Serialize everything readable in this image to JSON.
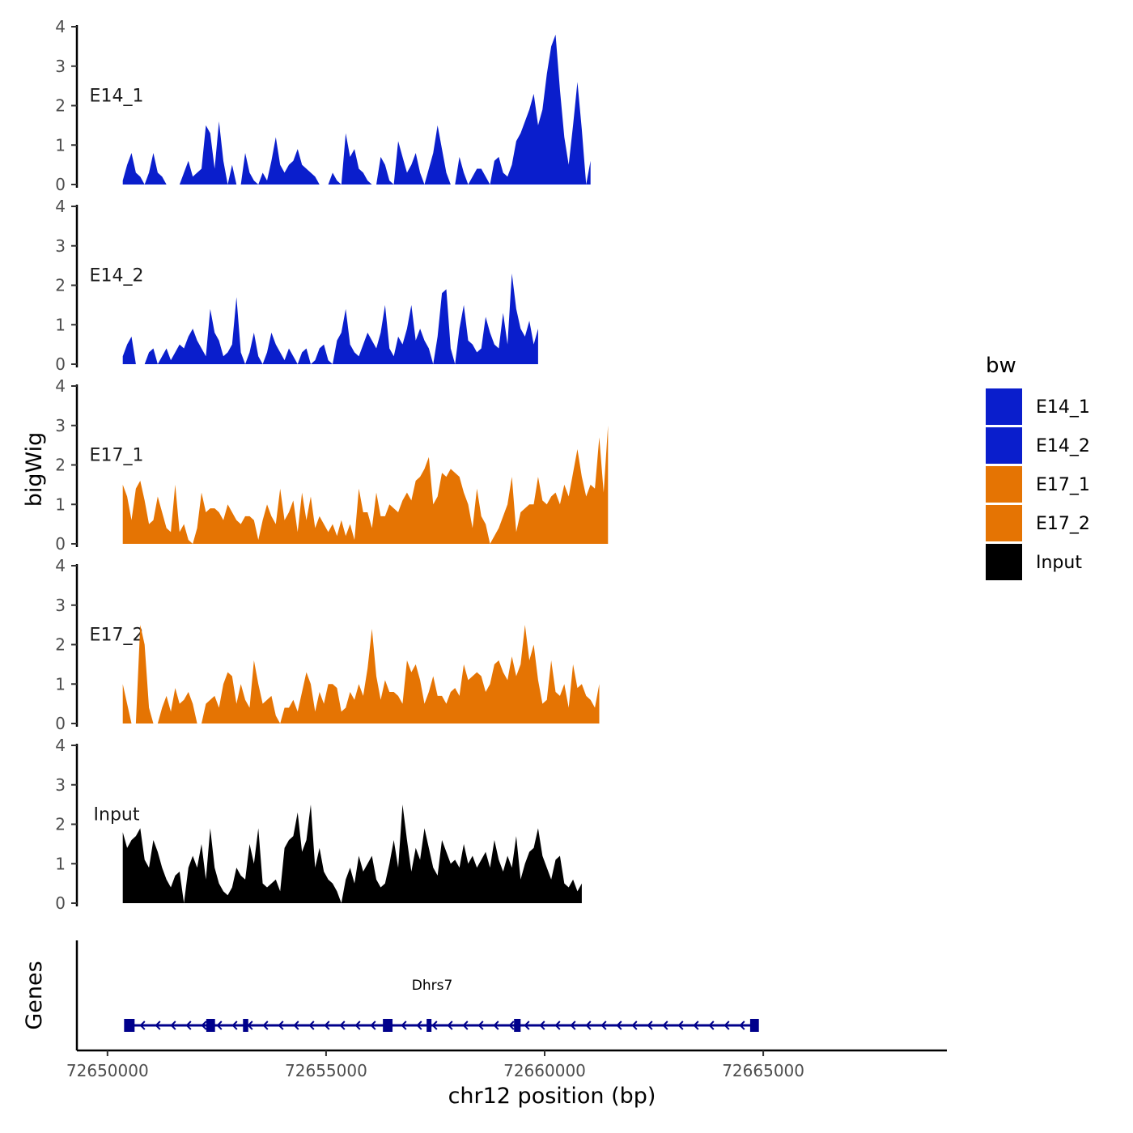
{
  "chart_data": {
    "type": "area",
    "title": "",
    "ylabel": "bigWig",
    "xlabel": "chr12 position (bp)",
    "ylim": [
      0,
      4
    ],
    "y_ticks": [
      "0",
      "1",
      "2",
      "3",
      "4"
    ],
    "xlim": [
      72649300,
      72669200
    ],
    "x_ticks": [
      {
        "value": 72650000,
        "label": "72650000"
      },
      {
        "value": 72655000,
        "label": "72655000"
      },
      {
        "value": 72660000,
        "label": "72660000"
      },
      {
        "value": 72665000,
        "label": "72665000"
      }
    ],
    "x_start": 72650350,
    "x_step": 100,
    "legend": {
      "title": "bw",
      "position": "right",
      "entries": [
        {
          "label": "E14_1",
          "color": "#0A1ECC"
        },
        {
          "label": "E14_2",
          "color": "#0A1ECC"
        },
        {
          "label": "E17_1",
          "color": "#E57403"
        },
        {
          "label": "E17_2",
          "color": "#E57403"
        },
        {
          "label": "Input",
          "color": "#000000"
        }
      ]
    },
    "series": [
      {
        "name": "E14_1",
        "label": "E14_1",
        "color": "#0A1ECC",
        "values": [
          0.1,
          0.5,
          0.8,
          0.3,
          0.2,
          0,
          0.3,
          0.8,
          0.3,
          0.2,
          0,
          0,
          0,
          0,
          0.3,
          0.6,
          0.2,
          0.3,
          0.4,
          1.5,
          1.3,
          0.4,
          1.6,
          0.6,
          0,
          0.5,
          0,
          0,
          0.8,
          0.3,
          0.1,
          0,
          0.3,
          0.1,
          0.6,
          1.2,
          0.5,
          0.3,
          0.5,
          0.6,
          0.9,
          0.5,
          0.4,
          0.3,
          0.2,
          0,
          0,
          0,
          0.3,
          0.1,
          0,
          1.3,
          0.7,
          0.9,
          0.4,
          0.3,
          0.1,
          0,
          0,
          0.7,
          0.5,
          0.1,
          0,
          1.1,
          0.7,
          0.3,
          0.5,
          0.8,
          0.3,
          0,
          0.4,
          0.8,
          1.5,
          0.9,
          0.3,
          0,
          0,
          0.7,
          0.3,
          0,
          0.2,
          0.4,
          0.4,
          0.2,
          0,
          0.6,
          0.7,
          0.3,
          0.2,
          0.5,
          1.1,
          1.3,
          1.6,
          1.9,
          2.3,
          1.5,
          1.9,
          2.8,
          3.5,
          3.8,
          2.4,
          1.2,
          0.5,
          1.5,
          2.6,
          1.4,
          0,
          0.6
        ]
      },
      {
        "name": "E14_2",
        "label": "E14_2",
        "color": "#0A1ECC",
        "values": [
          0.2,
          0.5,
          0.7,
          0,
          0,
          0,
          0.3,
          0.4,
          0,
          0.2,
          0.4,
          0.1,
          0.3,
          0.5,
          0.4,
          0.7,
          0.9,
          0.6,
          0.4,
          0.2,
          1.4,
          0.8,
          0.6,
          0.2,
          0.3,
          0.5,
          1.7,
          0.3,
          0,
          0.3,
          0.8,
          0.2,
          0,
          0.3,
          0.8,
          0.5,
          0.3,
          0.1,
          0.4,
          0.2,
          0,
          0.3,
          0.4,
          0,
          0.1,
          0.4,
          0.5,
          0.1,
          0,
          0.6,
          0.8,
          1.4,
          0.5,
          0.3,
          0.2,
          0.5,
          0.8,
          0.6,
          0.4,
          0.8,
          1.5,
          0.4,
          0.2,
          0.7,
          0.5,
          0.9,
          1.5,
          0.6,
          0.9,
          0.6,
          0.4,
          0,
          0.7,
          1.8,
          1.9,
          0.4,
          0,
          0.9,
          1.5,
          0.6,
          0.5,
          0.3,
          0.4,
          1.2,
          0.8,
          0.5,
          0.4,
          1.3,
          0.5,
          2.3,
          1.4,
          0.9,
          0.7,
          1.1,
          0.5,
          0.9
        ]
      },
      {
        "name": "E17_1",
        "label": "E17_1",
        "color": "#E57403",
        "values": [
          1.5,
          1.2,
          0.6,
          1.4,
          1.6,
          1.1,
          0.5,
          0.6,
          1.2,
          0.8,
          0.4,
          0.3,
          1.5,
          0.3,
          0.5,
          0.1,
          0,
          0.4,
          1.3,
          0.8,
          0.9,
          0.9,
          0.8,
          0.6,
          1.0,
          0.8,
          0.6,
          0.5,
          0.7,
          0.7,
          0.6,
          0.1,
          0.6,
          1.0,
          0.7,
          0.5,
          1.4,
          0.6,
          0.8,
          1.1,
          0.3,
          1.3,
          0.6,
          1.2,
          0.4,
          0.7,
          0.5,
          0.3,
          0.5,
          0.2,
          0.6,
          0.2,
          0.5,
          0.1,
          1.4,
          0.8,
          0.8,
          0.4,
          1.3,
          0.7,
          0.7,
          1.0,
          0.9,
          0.8,
          1.1,
          1.3,
          1.1,
          1.6,
          1.7,
          1.9,
          2.2,
          1.0,
          1.2,
          1.8,
          1.7,
          1.9,
          1.8,
          1.7,
          1.3,
          1.0,
          0.4,
          1.4,
          0.7,
          0.5,
          0,
          0.2,
          0.4,
          0.7,
          1.0,
          1.7,
          0.3,
          0.8,
          0.9,
          1.0,
          1.0,
          1.7,
          1.1,
          1.0,
          1.2,
          1.3,
          1.0,
          1.5,
          1.2,
          1.8,
          2.4,
          1.7,
          1.2,
          1.5,
          1.4,
          2.7,
          1.3,
          3.0
        ]
      },
      {
        "name": "E17_2",
        "label": "E17_2",
        "color": "#E57403",
        "values": [
          1.0,
          0.5,
          0,
          0,
          2.5,
          2.0,
          0.4,
          0,
          0,
          0.4,
          0.7,
          0.3,
          0.9,
          0.5,
          0.6,
          0.8,
          0.5,
          0,
          0,
          0.5,
          0.6,
          0.7,
          0.4,
          1.0,
          1.3,
          1.2,
          0.5,
          1.0,
          0.6,
          0.4,
          1.6,
          1.0,
          0.5,
          0.6,
          0.7,
          0.2,
          0,
          0.4,
          0.4,
          0.6,
          0.3,
          0.8,
          1.3,
          1.0,
          0.3,
          0.8,
          0.5,
          1.0,
          1.0,
          0.9,
          0.3,
          0.4,
          0.8,
          0.6,
          1.0,
          0.7,
          1.4,
          2.4,
          1.2,
          0.6,
          1.1,
          0.8,
          0.8,
          0.7,
          0.5,
          1.6,
          1.3,
          1.5,
          1.1,
          0.5,
          0.8,
          1.2,
          0.7,
          0.7,
          0.5,
          0.8,
          0.9,
          0.7,
          1.5,
          1.1,
          1.2,
          1.3,
          1.2,
          0.8,
          1.0,
          1.5,
          1.6,
          1.3,
          1.1,
          1.7,
          1.2,
          1.5,
          2.5,
          1.6,
          2.0,
          1.1,
          0.5,
          0.6,
          1.6,
          0.8,
          0.7,
          1.0,
          0.4,
          1.5,
          0.9,
          1.0,
          0.7,
          0.6,
          0.4,
          1.0
        ]
      },
      {
        "name": "Input",
        "label": "Input",
        "color": "#000000",
        "values": [
          1.8,
          1.4,
          1.6,
          1.7,
          1.9,
          1.1,
          0.9,
          1.6,
          1.3,
          0.9,
          0.6,
          0.4,
          0.7,
          0.8,
          0,
          0.9,
          1.2,
          0.9,
          1.5,
          0.6,
          1.9,
          0.9,
          0.5,
          0.3,
          0.2,
          0.4,
          0.9,
          0.7,
          0.6,
          1.5,
          1.0,
          1.9,
          0.5,
          0.4,
          0.5,
          0.6,
          0.3,
          1.4,
          1.6,
          1.7,
          2.3,
          1.3,
          1.6,
          2.5,
          0.9,
          1.4,
          0.8,
          0.6,
          0.5,
          0.3,
          0,
          0.6,
          0.9,
          0.5,
          1.2,
          0.8,
          1.0,
          1.2,
          0.6,
          0.4,
          0.5,
          1.0,
          1.6,
          0.9,
          2.5,
          1.6,
          0.8,
          1.4,
          1.1,
          1.9,
          1.4,
          0.9,
          0.7,
          1.6,
          1.3,
          1.0,
          1.1,
          0.9,
          1.5,
          1.0,
          1.2,
          0.9,
          1.1,
          1.3,
          0.9,
          1.6,
          1.1,
          0.8,
          1.2,
          0.9,
          1.7,
          0.6,
          1.0,
          1.3,
          1.4,
          1.9,
          1.2,
          0.9,
          0.6,
          1.1,
          1.2,
          0.5,
          0.4,
          0.6,
          0.3,
          0.5
        ]
      }
    ],
    "genes": {
      "axis_label": "Genes",
      "color": "#00008B",
      "items": [
        {
          "name": "Dhrs7",
          "start": 72650500,
          "end": 72664800,
          "strand": "-",
          "exons": [
            {
              "start": 72650380,
              "end": 72650620
            },
            {
              "start": 72652260,
              "end": 72652460
            },
            {
              "start": 72653100,
              "end": 72653220
            },
            {
              "start": 72656300,
              "end": 72656520
            },
            {
              "start": 72657300,
              "end": 72657400
            },
            {
              "start": 72659300,
              "end": 72659450
            },
            {
              "start": 72664700,
              "end": 72664900
            }
          ]
        }
      ]
    }
  }
}
